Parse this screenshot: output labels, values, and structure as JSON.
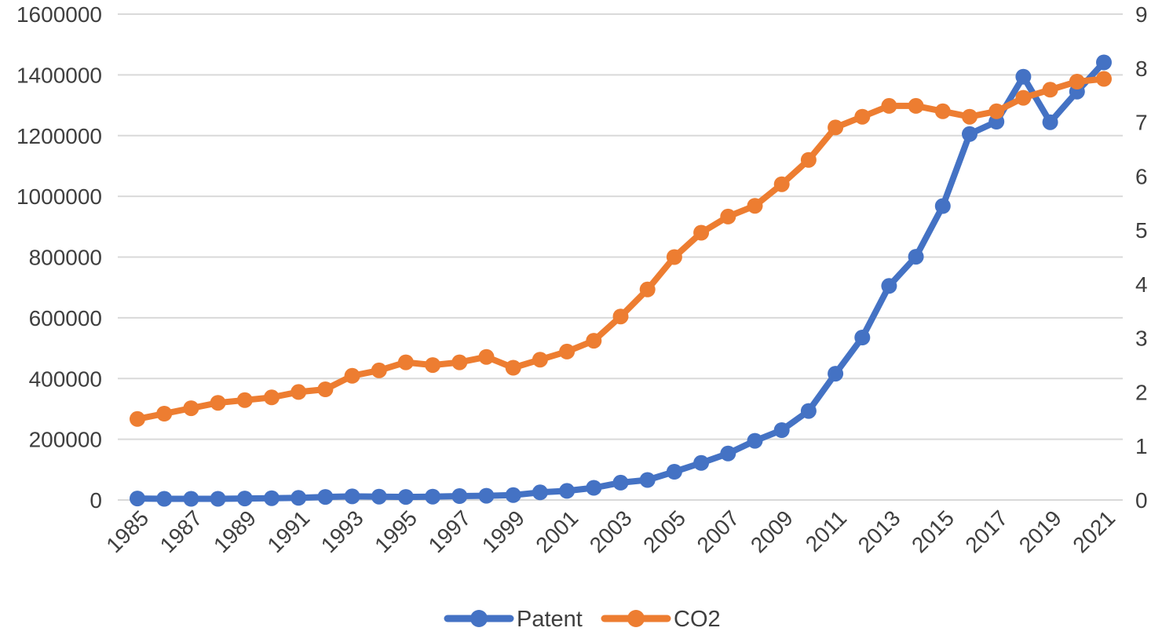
{
  "page": {
    "background": "#ffffff",
    "text_color": "#3f3f3f",
    "gridline_color": "#d9d9d9"
  },
  "chart_data": {
    "type": "line",
    "title": "",
    "x": [
      1985,
      1986,
      1987,
      1988,
      1989,
      1990,
      1991,
      1992,
      1993,
      1994,
      1995,
      1996,
      1997,
      1998,
      1999,
      2000,
      2001,
      2002,
      2003,
      2004,
      2005,
      2006,
      2007,
      2008,
      2009,
      2010,
      2011,
      2012,
      2013,
      2014,
      2015,
      2016,
      2017,
      2018,
      2019,
      2020,
      2021
    ],
    "x_axis": {
      "tick_labels": [
        "1985",
        "1987",
        "1989",
        "1991",
        "1993",
        "1995",
        "1997",
        "1999",
        "2001",
        "2003",
        "2005",
        "2007",
        "2009",
        "2011",
        "2013",
        "2015",
        "2017",
        "2019",
        "2021"
      ],
      "label_rotation_deg": -45
    },
    "left_axis": {
      "min": 0,
      "max": 1600000,
      "step": 200000,
      "tick_labels": [
        "1600000",
        "1400000",
        "1200000",
        "1000000",
        "800000",
        "600000",
        "400000",
        "200000",
        "0"
      ],
      "for_series": "Patent"
    },
    "right_axis": {
      "min": 0,
      "max": 9,
      "step": 1,
      "tick_labels": [
        "9",
        "8",
        "7",
        "6",
        "5",
        "4",
        "3",
        "2",
        "1",
        "0"
      ],
      "for_series": "CO2"
    },
    "grid": {
      "horizontal": true,
      "vertical": false
    },
    "legend": {
      "position": "bottom",
      "entries": [
        "Patent",
        "CO2"
      ]
    },
    "series": [
      {
        "name": "Patent",
        "axis": "left",
        "color": "#4472C4",
        "marker": "circle",
        "values": [
          5000,
          4000,
          4000,
          4000,
          5000,
          6000,
          7000,
          10000,
          12000,
          11000,
          10000,
          11000,
          13000,
          14000,
          16000,
          25000,
          30000,
          40000,
          57000,
          66000,
          93000,
          122000,
          153000,
          195000,
          230000,
          293000,
          416000,
          535000,
          705000,
          801000,
          968000,
          1205000,
          1246000,
          1394000,
          1244000,
          1345000,
          1441000
        ]
      },
      {
        "name": "CO2",
        "axis": "right",
        "color": "#ED7D31",
        "marker": "circle",
        "values": [
          1.5,
          1.6,
          1.7,
          1.8,
          1.85,
          1.9,
          2.0,
          2.05,
          2.3,
          2.4,
          2.55,
          2.5,
          2.55,
          2.65,
          2.45,
          2.6,
          2.75,
          2.95,
          3.4,
          3.9,
          4.5,
          4.95,
          5.25,
          5.45,
          5.85,
          6.3,
          6.9,
          7.1,
          7.3,
          7.3,
          7.2,
          7.1,
          7.2,
          7.45,
          7.6,
          7.75,
          7.8
        ]
      }
    ]
  }
}
